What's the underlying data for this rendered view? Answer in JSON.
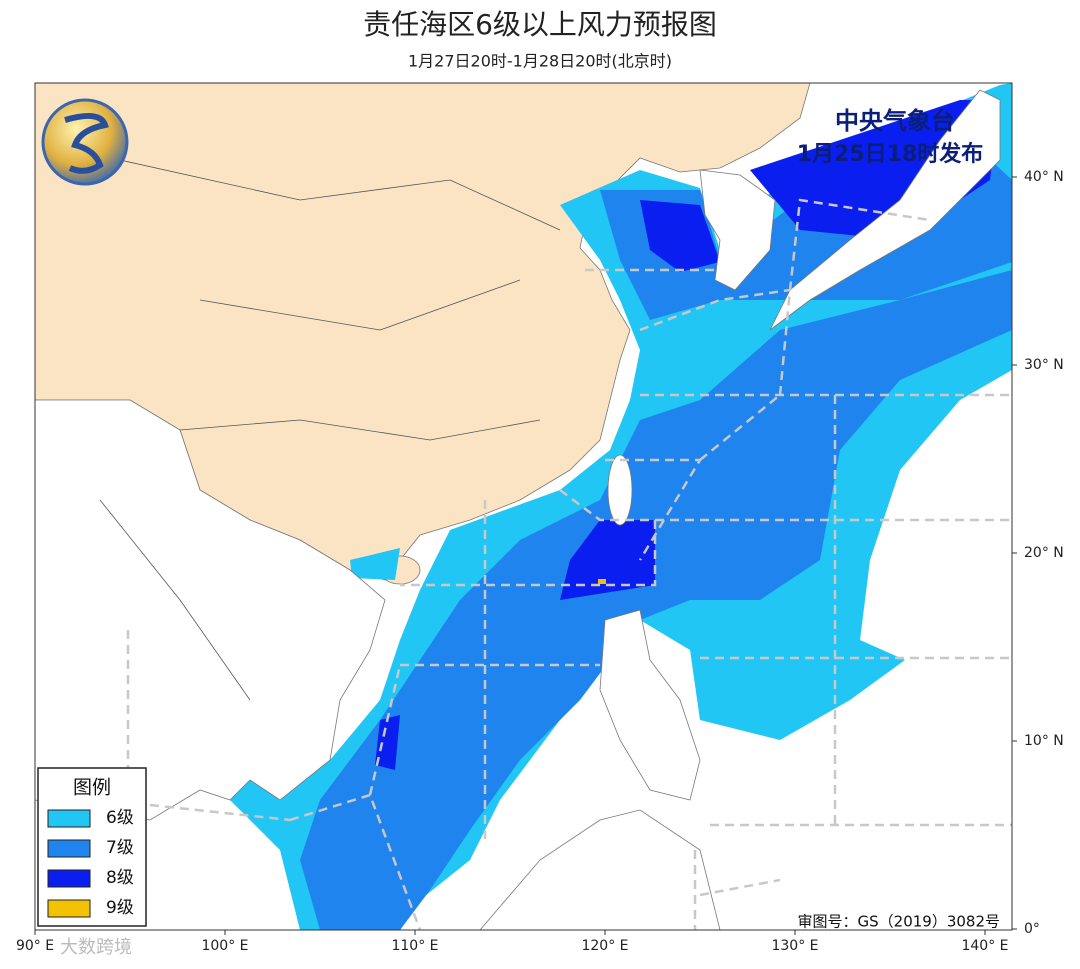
{
  "header": {
    "title": "责任海区6级以上风力预报图",
    "subtitle": "1月27日20时-1月28日20时(北京时)"
  },
  "issuer": {
    "name": "中央气象台",
    "time": "1月25日18时发布"
  },
  "legend": {
    "title": "图例",
    "items": [
      {
        "label": "6级",
        "color": "#22c6f4"
      },
      {
        "label": "7级",
        "color": "#1f84ee"
      },
      {
        "label": "8级",
        "color": "#0b1ef0"
      },
      {
        "label": "9级",
        "color": "#f2c100"
      }
    ]
  },
  "axes": {
    "lon_labels": [
      "90° E",
      "100° E",
      "110° E",
      "120° E",
      "130° E",
      "140° E"
    ],
    "lat_labels": [
      "40° N",
      "30° N",
      "20° N",
      "10° N",
      "0°"
    ]
  },
  "footer": {
    "approval": "审图号：GS（2019）3082号"
  },
  "watermark": "大数跨境"
}
